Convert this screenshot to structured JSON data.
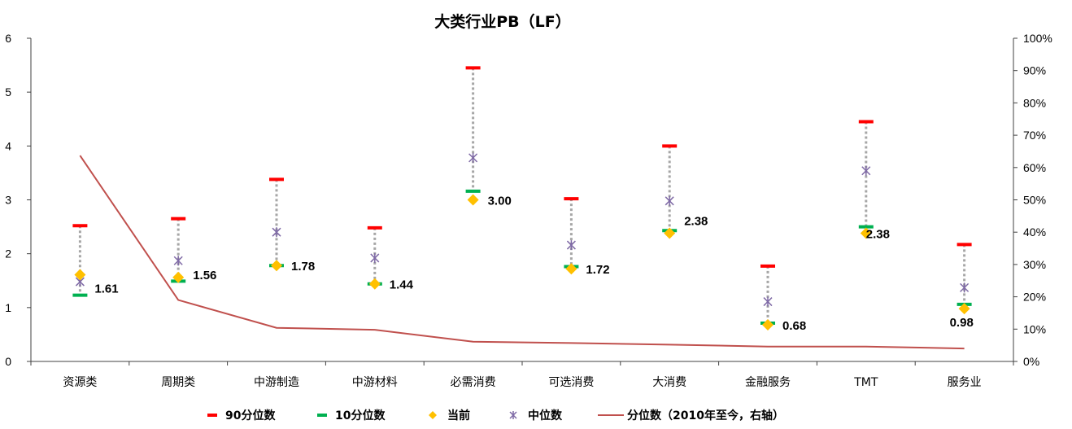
{
  "chart_data": {
    "type": "scatter",
    "title": "大类行业PB（LF）",
    "categories": [
      "资源类",
      "周期类",
      "中游制造",
      "中游材料",
      "必需消费",
      "可选消费",
      "大消费",
      "金融服务",
      "TMT",
      "服务业"
    ],
    "series": [
      {
        "name": "90分位数",
        "values": [
          2.52,
          2.65,
          3.38,
          2.48,
          5.45,
          3.02,
          4.0,
          1.77,
          4.45,
          2.17
        ]
      },
      {
        "name": "10分位数",
        "values": [
          1.23,
          1.49,
          1.78,
          1.44,
          3.16,
          1.76,
          2.43,
          0.71,
          2.5,
          1.06
        ]
      },
      {
        "name": "当前",
        "values": [
          1.61,
          1.56,
          1.78,
          1.44,
          3.0,
          1.72,
          2.38,
          0.68,
          2.38,
          0.98
        ]
      },
      {
        "name": "中位数",
        "values": [
          1.48,
          1.87,
          2.4,
          1.92,
          3.78,
          2.16,
          2.98,
          1.11,
          3.54,
          1.37
        ]
      },
      {
        "name": "分位数（2010年至今，右轴）",
        "axis": "right",
        "values": [
          0.637,
          0.19,
          0.104,
          0.098,
          0.061,
          0.057,
          0.052,
          0.046,
          0.046,
          0.04
        ]
      }
    ],
    "value_labels": [
      "1.61",
      "1.56",
      "1.78",
      "1.44",
      "3.00",
      "1.72",
      "2.38",
      "0.68",
      "2.38",
      "0.98"
    ],
    "y_left": {
      "min": 0,
      "max": 6,
      "ticks": [
        "0",
        "1",
        "2",
        "3",
        "4",
        "5",
        "6"
      ]
    },
    "y_right": {
      "min": 0,
      "max": 1,
      "ticks": [
        "0%",
        "10%",
        "20%",
        "30%",
        "40%",
        "50%",
        "60%",
        "70%",
        "80%",
        "90%",
        "100%"
      ]
    },
    "legend_position": "bottom",
    "grid": false,
    "colors": {
      "p90": "#ff0000",
      "p10": "#00b050",
      "current": "#ffc000",
      "median": "#7f6aa6",
      "percentile_line": "#c0504d",
      "connector": "#a6a6a6"
    }
  }
}
